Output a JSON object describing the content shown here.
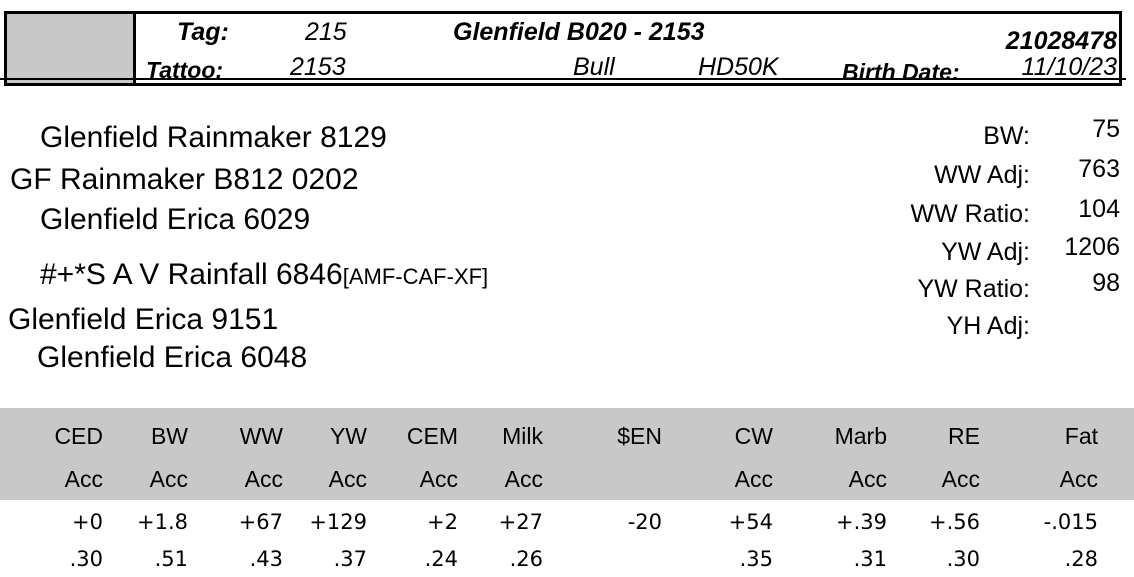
{
  "header": {
    "tag_label": "Tag:",
    "tag_value": "215",
    "name": "Glenfield B020 - 2153",
    "registration": "21028478",
    "tattoo_label": "Tattoo:",
    "tattoo_value": "2153",
    "sex": "Bull",
    "test": "HD50K",
    "birth_date_label": "Birth Date:",
    "birth_date": "11/10/23"
  },
  "pedigree": {
    "sire_sire": "Glenfield Rainmaker 8129",
    "sire": "GF Rainmaker B812 0202",
    "sire_dam": "Glenfield Erica 6029",
    "dam_sire": "#+*S A V Rainfall 6846",
    "dam_sire_codes": "[AMF-CAF-XF]",
    "dam": "Glenfield Erica 9151",
    "dam_dam": "Glenfield Erica 6048"
  },
  "weights": [
    {
      "label": "BW:",
      "value": "75"
    },
    {
      "label": "WW Adj:",
      "value": "763"
    },
    {
      "label": "WW Ratio:",
      "value": "104"
    },
    {
      "label": "YW Adj:",
      "value": "1206"
    },
    {
      "label": "YW Ratio:",
      "value": "98"
    },
    {
      "label": "YH Adj:",
      "value": ""
    }
  ],
  "epd": {
    "columns": [
      {
        "trait": "CED",
        "acc_label": "Acc",
        "value": "+0",
        "acc": ".30"
      },
      {
        "trait": "BW",
        "acc_label": "Acc",
        "value": "+1.8",
        "acc": ".51"
      },
      {
        "trait": "WW",
        "acc_label": "Acc",
        "value": "+67",
        "acc": ".43"
      },
      {
        "trait": "YW",
        "acc_label": "Acc",
        "value": "+129",
        "acc": ".37"
      },
      {
        "trait": "CEM",
        "acc_label": "Acc",
        "value": "+2",
        "acc": ".24"
      },
      {
        "trait": "Milk",
        "acc_label": "Acc",
        "value": "+27",
        "acc": ".26"
      },
      {
        "trait": "$EN",
        "acc_label": "",
        "value": "-20",
        "acc": ""
      },
      {
        "trait": "CW",
        "acc_label": "Acc",
        "value": "+54",
        "acc": ".35"
      },
      {
        "trait": "Marb",
        "acc_label": "Acc",
        "value": "+.39",
        "acc": ".31"
      },
      {
        "trait": "RE",
        "acc_label": "Acc",
        "value": "+.56",
        "acc": ".30"
      },
      {
        "trait": "Fat",
        "acc_label": "Acc",
        "value": "-.015",
        "acc": ".28"
      }
    ]
  }
}
